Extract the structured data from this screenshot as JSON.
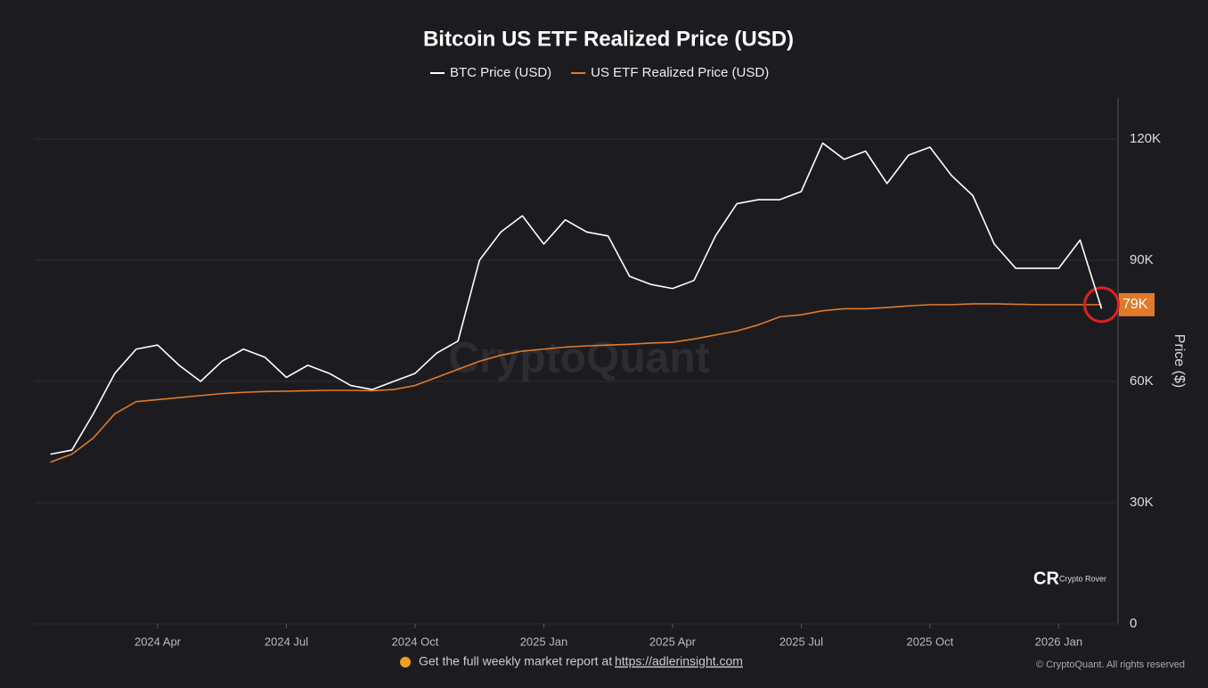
{
  "chart_data": {
    "type": "line",
    "title": "Bitcoin US ETF Realized Price (USD)",
    "y_label": "Price ($)",
    "watermark": "CryptoQuant",
    "logo": "Crypto Rover",
    "footer": {
      "text": "Get the full weekly market report at",
      "link": "https://adlerinsight.com"
    },
    "copyright": "© CryptoQuant. All rights reserved",
    "categories": [
      null,
      null,
      null,
      null,
      null,
      "2024 Apr",
      null,
      null,
      null,
      null,
      null,
      "2024 Jul",
      null,
      null,
      null,
      null,
      null,
      "2024 Oct",
      null,
      null,
      null,
      null,
      null,
      "2025 Jan",
      null,
      null,
      null,
      null,
      null,
      "2025 Apr",
      null,
      null,
      null,
      null,
      null,
      "2025 Jul",
      null,
      null,
      null,
      null,
      null,
      "2025 Oct",
      null,
      null,
      null,
      null,
      null,
      "2026 Jan",
      null,
      null
    ],
    "series": [
      {
        "name": "BTC Price (USD)",
        "color": "#ffffff",
        "values": [
          42000,
          43000,
          52000,
          62000,
          68000,
          69000,
          64000,
          60000,
          65000,
          68000,
          66000,
          61000,
          64000,
          62000,
          59000,
          58000,
          60000,
          62000,
          67000,
          70000,
          90000,
          97000,
          101000,
          94000,
          100000,
          97000,
          96000,
          86000,
          84000,
          83000,
          85000,
          96000,
          104000,
          105000,
          105000,
          107000,
          119000,
          115000,
          117000,
          109000,
          116000,
          118000,
          111000,
          106000,
          94000,
          88000,
          88000,
          88000,
          95000,
          78000
        ]
      },
      {
        "name": "US ETF Realized Price (USD)",
        "color": "#e07a2a",
        "values": [
          40000,
          42000,
          46000,
          52000,
          55000,
          55500,
          56000,
          56500,
          57000,
          57300,
          57500,
          57600,
          57700,
          57800,
          57800,
          57700,
          58000,
          59000,
          61000,
          63000,
          65000,
          66500,
          67500,
          68000,
          68500,
          68800,
          69000,
          69200,
          69500,
          69700,
          70500,
          71500,
          72500,
          74000,
          76000,
          76500,
          77500,
          78000,
          78000,
          78300,
          78700,
          79000,
          79000,
          79200,
          79200,
          79100,
          79000,
          79000,
          79000,
          79000
        ],
        "value_labels": [
          null,
          null,
          null,
          null,
          null,
          null,
          null,
          null,
          null,
          null,
          null,
          null,
          null,
          null,
          null,
          null,
          null,
          null,
          null,
          null,
          null,
          null,
          null,
          null,
          null,
          null,
          null,
          null,
          null,
          null,
          null,
          null,
          null,
          null,
          null,
          null,
          null,
          null,
          null,
          null,
          null,
          null,
          null,
          null,
          null,
          null,
          null,
          null,
          null,
          "79K"
        ]
      }
    ],
    "ylim": [
      0,
      130000
    ],
    "yticks": [
      0,
      {
        "value": 30000,
        "label": "30K"
      },
      {
        "value": 60000,
        "label": "60K"
      },
      {
        "value": 90000,
        "label": "90K"
      },
      {
        "value": 120000,
        "label": "120K"
      }
    ],
    "grid": true
  }
}
